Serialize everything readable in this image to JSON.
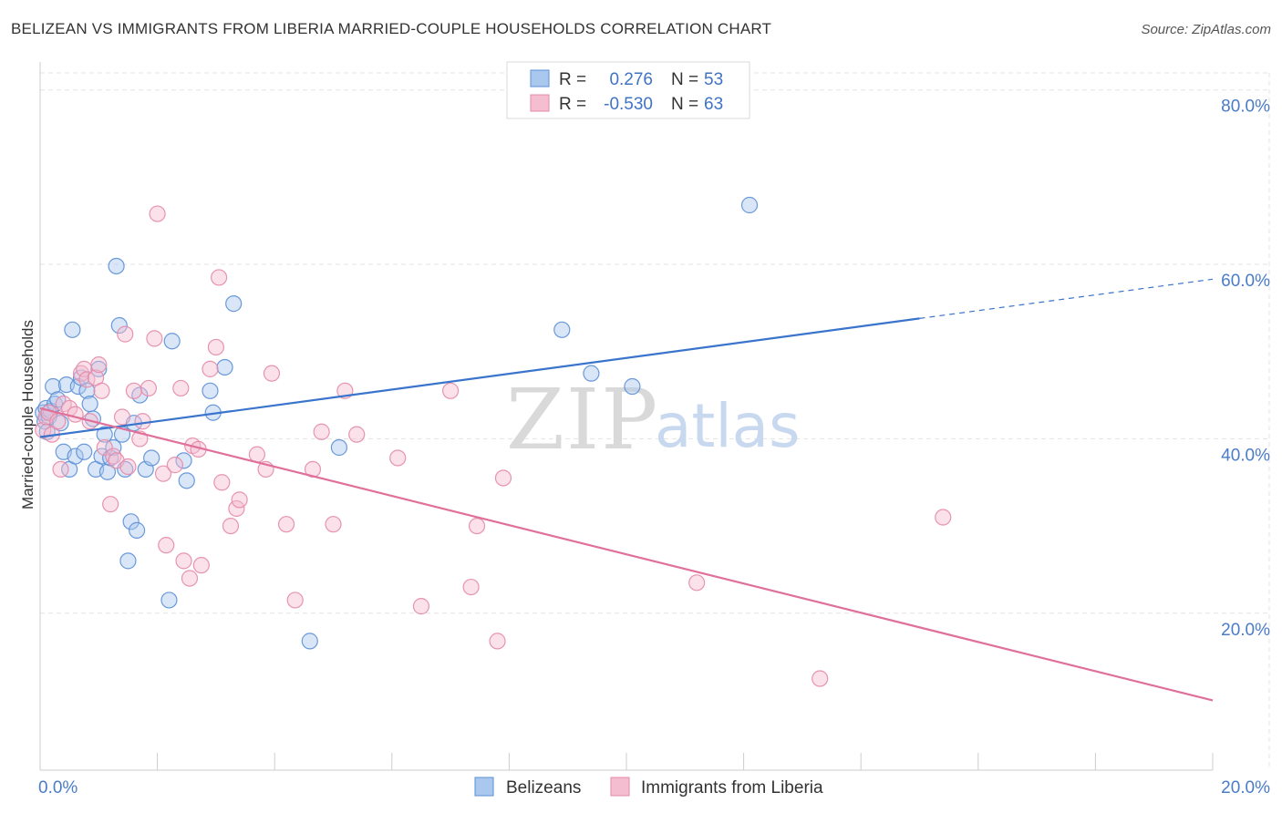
{
  "title": "BELIZEAN VS IMMIGRANTS FROM LIBERIA MARRIED-COUPLE HOUSEHOLDS CORRELATION CHART",
  "source": "Source: ZipAtlas.com",
  "colors": {
    "blue": "#5b8fd6",
    "blue_fill": "#aac8ee",
    "blue_line": "#3a74cc",
    "pink": "#e48aa8",
    "pink_fill": "#f5bdd0",
    "pink_line": "#e0709a",
    "axis_text": "#4a7cc9"
  },
  "watermark": {
    "zip": "ZIP",
    "atlas": "atlas"
  },
  "chart_data": {
    "type": "scatter",
    "title": "BELIZEAN VS IMMIGRANTS FROM LIBERIA MARRIED-COUPLE HOUSEHOLDS CORRELATION CHART",
    "xlabel": "",
    "ylabel": "Married-couple Households",
    "xlim": [
      0,
      20
    ],
    "ylim": [
      2,
      83
    ],
    "x_ticks": [
      0,
      2,
      4,
      6,
      8,
      10,
      12,
      14,
      16,
      18,
      20
    ],
    "x_tick_labels": {
      "0": "0.0%",
      "20": "20.0%"
    },
    "y_ticks": [
      20,
      40,
      60,
      80
    ],
    "y_tick_labels": [
      "20.0%",
      "40.0%",
      "60.0%",
      "80.0%"
    ],
    "grid": true,
    "legend": {
      "position": "top-center",
      "entries": [
        {
          "series": "Belizeans",
          "r_label": "R =",
          "r_value": "0.276",
          "n_label": "N =",
          "n_value": "53"
        },
        {
          "series": "Immigrants from Liberia",
          "r_label": "R =",
          "r_value": "-0.530",
          "n_label": "N =",
          "n_value": "63"
        }
      ]
    },
    "series": [
      {
        "name": "Belizeans",
        "color": "blue",
        "trend": {
          "x0": 0,
          "y0": 40.2,
          "x1": 15,
          "y1": 53.8,
          "dash_to_x": 20,
          "dash_to_y": 58.3
        },
        "points": [
          [
            0.05,
            43.0
          ],
          [
            0.08,
            42.0
          ],
          [
            0.1,
            43.5
          ],
          [
            0.12,
            40.8
          ],
          [
            0.15,
            42.5
          ],
          [
            0.18,
            43.2
          ],
          [
            0.22,
            46.0
          ],
          [
            0.25,
            44.0
          ],
          [
            0.3,
            44.5
          ],
          [
            0.35,
            41.8
          ],
          [
            0.4,
            38.5
          ],
          [
            0.45,
            46.2
          ],
          [
            0.5,
            36.5
          ],
          [
            0.55,
            52.5
          ],
          [
            0.6,
            38.0
          ],
          [
            0.65,
            46.0
          ],
          [
            0.7,
            47.0
          ],
          [
            0.75,
            38.5
          ],
          [
            0.8,
            45.5
          ],
          [
            0.85,
            44.0
          ],
          [
            0.9,
            42.3
          ],
          [
            0.95,
            36.5
          ],
          [
            1.0,
            48.0
          ],
          [
            1.05,
            38.0
          ],
          [
            1.1,
            40.5
          ],
          [
            1.15,
            36.2
          ],
          [
            1.2,
            37.8
          ],
          [
            1.25,
            39.0
          ],
          [
            1.3,
            59.8
          ],
          [
            1.35,
            53.0
          ],
          [
            1.45,
            36.5
          ],
          [
            1.55,
            30.5
          ],
          [
            1.6,
            41.8
          ],
          [
            1.7,
            45.0
          ],
          [
            1.8,
            36.5
          ],
          [
            1.9,
            37.8
          ],
          [
            1.5,
            26.0
          ],
          [
            1.65,
            29.5
          ],
          [
            2.2,
            21.5
          ],
          [
            2.25,
            51.2
          ],
          [
            2.5,
            35.2
          ],
          [
            2.45,
            37.5
          ],
          [
            2.9,
            45.5
          ],
          [
            2.95,
            43.0
          ],
          [
            3.15,
            48.2
          ],
          [
            3.3,
            55.5
          ],
          [
            4.6,
            16.8
          ],
          [
            5.1,
            39.0
          ],
          [
            8.9,
            52.5
          ],
          [
            9.4,
            47.5
          ],
          [
            10.1,
            46.0
          ],
          [
            12.1,
            66.8
          ],
          [
            1.4,
            40.5
          ]
        ]
      },
      {
        "name": "Immigrants from Liberia",
        "color": "pink",
        "trend": {
          "x0": 0,
          "y0": 43.5,
          "x1": 20,
          "y1": 10.0
        },
        "points": [
          [
            0.05,
            41.0
          ],
          [
            0.1,
            42.5
          ],
          [
            0.15,
            43.0
          ],
          [
            0.2,
            40.5
          ],
          [
            0.3,
            42.0
          ],
          [
            0.35,
            36.5
          ],
          [
            0.4,
            44.0
          ],
          [
            0.5,
            43.5
          ],
          [
            0.6,
            42.8
          ],
          [
            0.7,
            47.5
          ],
          [
            0.75,
            48.0
          ],
          [
            0.8,
            46.8
          ],
          [
            0.85,
            42.0
          ],
          [
            0.95,
            47.0
          ],
          [
            1.0,
            48.5
          ],
          [
            1.05,
            45.5
          ],
          [
            1.1,
            39.0
          ],
          [
            1.2,
            32.5
          ],
          [
            1.25,
            38.0
          ],
          [
            1.3,
            37.5
          ],
          [
            1.4,
            42.5
          ],
          [
            1.45,
            52.0
          ],
          [
            1.5,
            36.8
          ],
          [
            1.6,
            45.5
          ],
          [
            1.7,
            40.0
          ],
          [
            1.75,
            42.0
          ],
          [
            1.85,
            45.8
          ],
          [
            1.95,
            51.5
          ],
          [
            2.0,
            65.8
          ],
          [
            2.1,
            36.0
          ],
          [
            2.15,
            27.8
          ],
          [
            2.3,
            37.0
          ],
          [
            2.4,
            45.8
          ],
          [
            2.45,
            26.0
          ],
          [
            2.55,
            24.0
          ],
          [
            2.6,
            39.2
          ],
          [
            2.7,
            38.8
          ],
          [
            2.75,
            25.5
          ],
          [
            2.9,
            48.0
          ],
          [
            3.0,
            50.5
          ],
          [
            3.05,
            58.5
          ],
          [
            3.1,
            35.0
          ],
          [
            3.25,
            30.0
          ],
          [
            3.35,
            32.0
          ],
          [
            3.4,
            33.0
          ],
          [
            3.7,
            38.2
          ],
          [
            3.85,
            36.5
          ],
          [
            3.95,
            47.5
          ],
          [
            4.2,
            30.2
          ],
          [
            4.35,
            21.5
          ],
          [
            4.65,
            36.5
          ],
          [
            4.8,
            40.8
          ],
          [
            5.0,
            30.2
          ],
          [
            5.2,
            45.5
          ],
          [
            5.4,
            40.5
          ],
          [
            6.1,
            37.8
          ],
          [
            6.5,
            20.8
          ],
          [
            7.0,
            45.5
          ],
          [
            7.35,
            23.0
          ],
          [
            7.45,
            30.0
          ],
          [
            7.8,
            16.8
          ],
          [
            7.9,
            35.5
          ],
          [
            11.2,
            23.5
          ]
        ],
        "extra_points": [
          [
            13.3,
            12.5
          ],
          [
            15.4,
            31.0
          ]
        ]
      }
    ],
    "bottom_legend": [
      "Belizeans",
      "Immigrants from Liberia"
    ]
  }
}
